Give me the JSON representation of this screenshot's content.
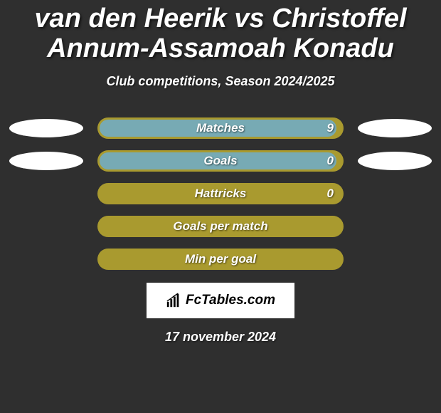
{
  "title_fontsize": 38,
  "title": "van den Heerik vs Christoffel Annum-Assamoah Konadu",
  "subtitle": "Club competitions, Season 2024/2025",
  "subtitle_fontsize": 18,
  "background_color": "#2f2f2f",
  "bar_outer_color": "#a99a2f",
  "bar_inner_color": "#77aab4",
  "oval_color": "#ffffff",
  "label_fontsize": 17,
  "value_fontsize": 17,
  "stats": [
    {
      "label": "Matches",
      "value": "9",
      "inner_width_pct": 98,
      "show_ovals": true,
      "oval_offset": 0
    },
    {
      "label": "Goals",
      "value": "0",
      "inner_width_pct": 98,
      "show_ovals": true,
      "oval_offset": 12
    },
    {
      "label": "Hattricks",
      "value": "0",
      "inner_width_pct": 0,
      "show_ovals": false,
      "oval_offset": 0
    },
    {
      "label": "Goals per match",
      "value": "",
      "inner_width_pct": 0,
      "show_ovals": false,
      "oval_offset": 0
    },
    {
      "label": "Min per goal",
      "value": "",
      "inner_width_pct": 0,
      "show_ovals": false,
      "oval_offset": 0
    }
  ],
  "logo_text": "FcTables.com",
  "logo_fontsize": 19,
  "date": "17 november 2024",
  "date_fontsize": 18
}
